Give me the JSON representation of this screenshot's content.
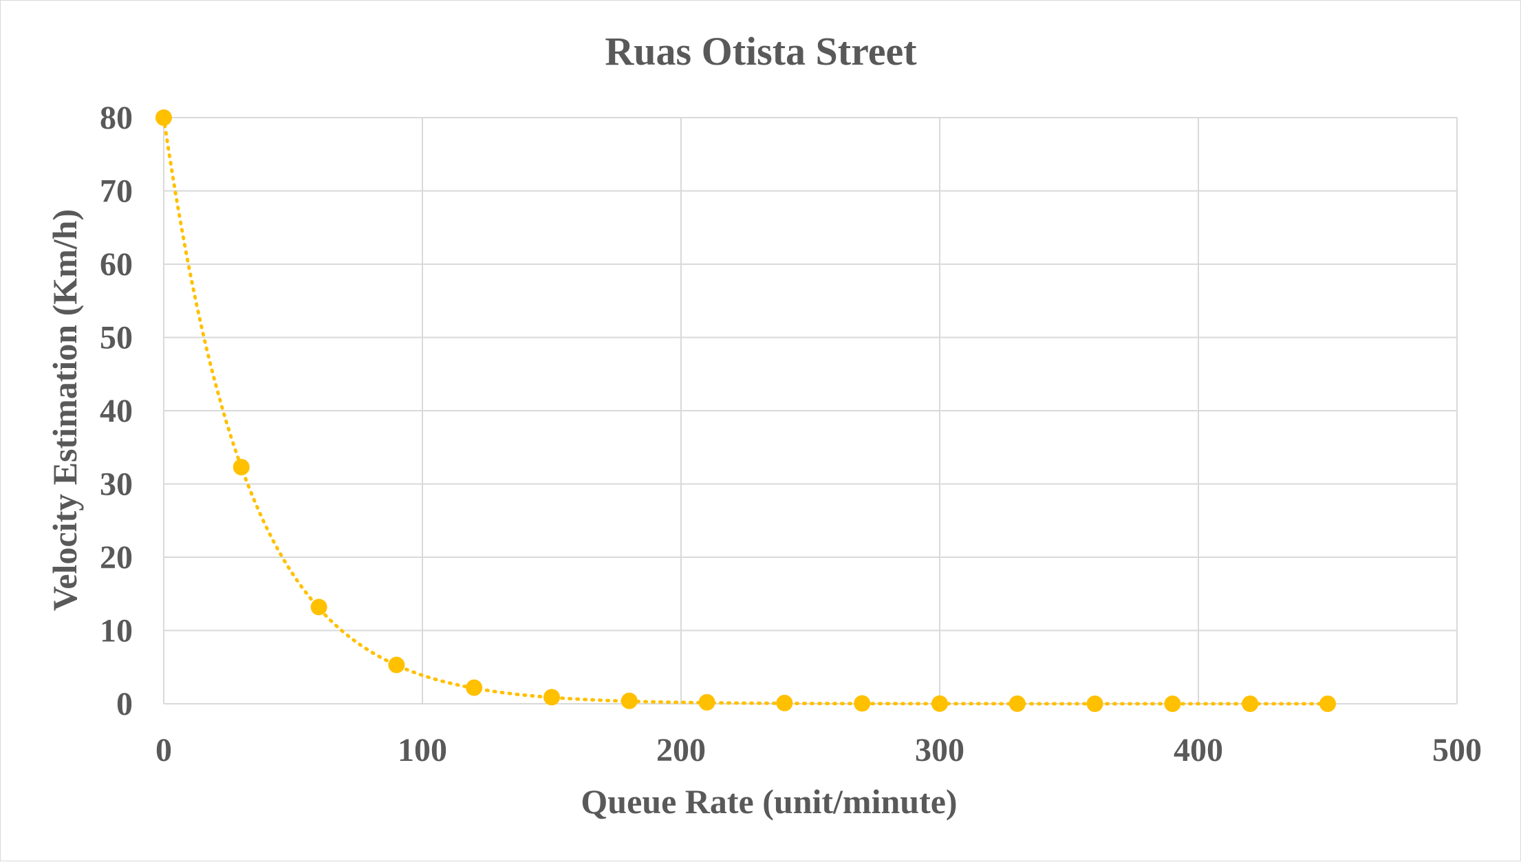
{
  "chart_data": {
    "type": "scatter",
    "title": "Ruas Otista Street",
    "xlabel": "Queue Rate (unit/minute)",
    "ylabel": "Velocity Estimation (Km/h)",
    "xlim": [
      0,
      500
    ],
    "ylim": [
      0,
      80
    ],
    "x_ticks": [
      "0",
      "100",
      "200",
      "300",
      "400",
      "500"
    ],
    "y_ticks": [
      "0",
      "10",
      "20",
      "30",
      "40",
      "50",
      "60",
      "70",
      "80"
    ],
    "grid": true,
    "legend": "none",
    "trendline": "exponential, dotted",
    "color": "#ffc000",
    "series": [
      {
        "x": [
          0,
          30,
          60,
          90,
          120,
          150,
          180,
          210,
          240,
          270,
          300,
          330,
          360,
          390,
          420,
          450
        ],
        "y": [
          80,
          32.3,
          13.2,
          5.3,
          2.2,
          0.9,
          0.4,
          0.2,
          0.1,
          0.05,
          0.02,
          0.01,
          0.0,
          0.0,
          0.0,
          0.0
        ]
      }
    ]
  }
}
